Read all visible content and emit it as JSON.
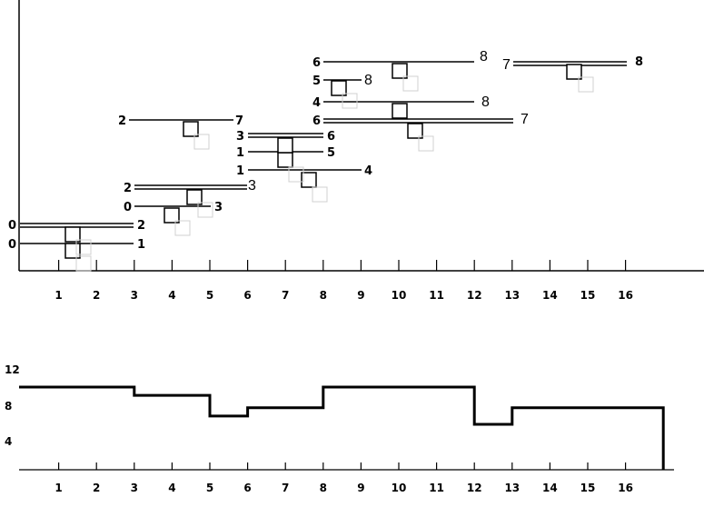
{
  "top_axis": {
    "ticks": [
      {
        "label": "1"
      },
      {
        "label": "2"
      },
      {
        "label": "3"
      },
      {
        "label": "4"
      },
      {
        "label": "5"
      },
      {
        "label": "6"
      },
      {
        "label": "7"
      },
      {
        "label": "8"
      },
      {
        "label": "9"
      },
      {
        "label": "10"
      },
      {
        "label": "11"
      },
      {
        "label": "12"
      },
      {
        "label": "13"
      },
      {
        "label": "14"
      },
      {
        "label": "15"
      },
      {
        "label": "16"
      }
    ]
  },
  "intervals": [
    {
      "left_label": "0",
      "right_label": "1",
      "right_bold": true,
      "double": false
    },
    {
      "left_label": "0",
      "right_label": "2",
      "right_bold": true,
      "double": true
    },
    {
      "left_label": "0",
      "right_label": "3",
      "right_bold": true,
      "double": false
    },
    {
      "left_label": "2",
      "right_label": "3",
      "right_bold": false,
      "double": true
    },
    {
      "left_label": "2",
      "right_label": "7",
      "right_bold": true,
      "double": false
    },
    {
      "left_label": "1",
      "right_label": "4",
      "right_bold": true,
      "double": false
    },
    {
      "left_label": "1",
      "right_label": "5",
      "right_bold": true,
      "double": false
    },
    {
      "left_label": "3",
      "right_label": "6",
      "right_bold": true,
      "double": true
    },
    {
      "left_label": "6",
      "right_label": "7",
      "right_bold": false,
      "double": true
    },
    {
      "left_label": "4",
      "right_label": "8",
      "right_bold": false,
      "double": false
    },
    {
      "left_label": "5",
      "right_label": "8",
      "right_bold": false,
      "double": false
    },
    {
      "left_label": "6",
      "right_label": "8",
      "right_bold": false,
      "double": false
    },
    {
      "left_label": "7",
      "right_label": "8",
      "right_bold": false,
      "double": true
    }
  ],
  "bottom_chart": {
    "y_ticks": [
      {
        "label": "12"
      },
      {
        "label": "8"
      },
      {
        "label": "4"
      }
    ],
    "x_ticks": [
      {
        "label": "1"
      },
      {
        "label": "2"
      },
      {
        "label": "3"
      },
      {
        "label": "4"
      },
      {
        "label": "5"
      },
      {
        "label": "6"
      },
      {
        "label": "7"
      },
      {
        "label": "8"
      },
      {
        "label": "9"
      },
      {
        "label": "10"
      },
      {
        "label": "11"
      },
      {
        "label": "12"
      },
      {
        "label": "13"
      },
      {
        "label": "14"
      },
      {
        "label": "15"
      },
      {
        "label": "16"
      }
    ],
    "steps": [
      {
        "from": 0,
        "to": 3,
        "value": 10
      },
      {
        "from": 3,
        "to": 5,
        "value": 9
      },
      {
        "from": 5,
        "to": 6,
        "value": 6.5
      },
      {
        "from": 6,
        "to": 8,
        "value": 7.5
      },
      {
        "from": 8,
        "to": 12,
        "value": 10
      },
      {
        "from": 12,
        "to": 13,
        "value": 5.5
      },
      {
        "from": 13,
        "to": 17,
        "value": 7.5
      }
    ]
  }
}
